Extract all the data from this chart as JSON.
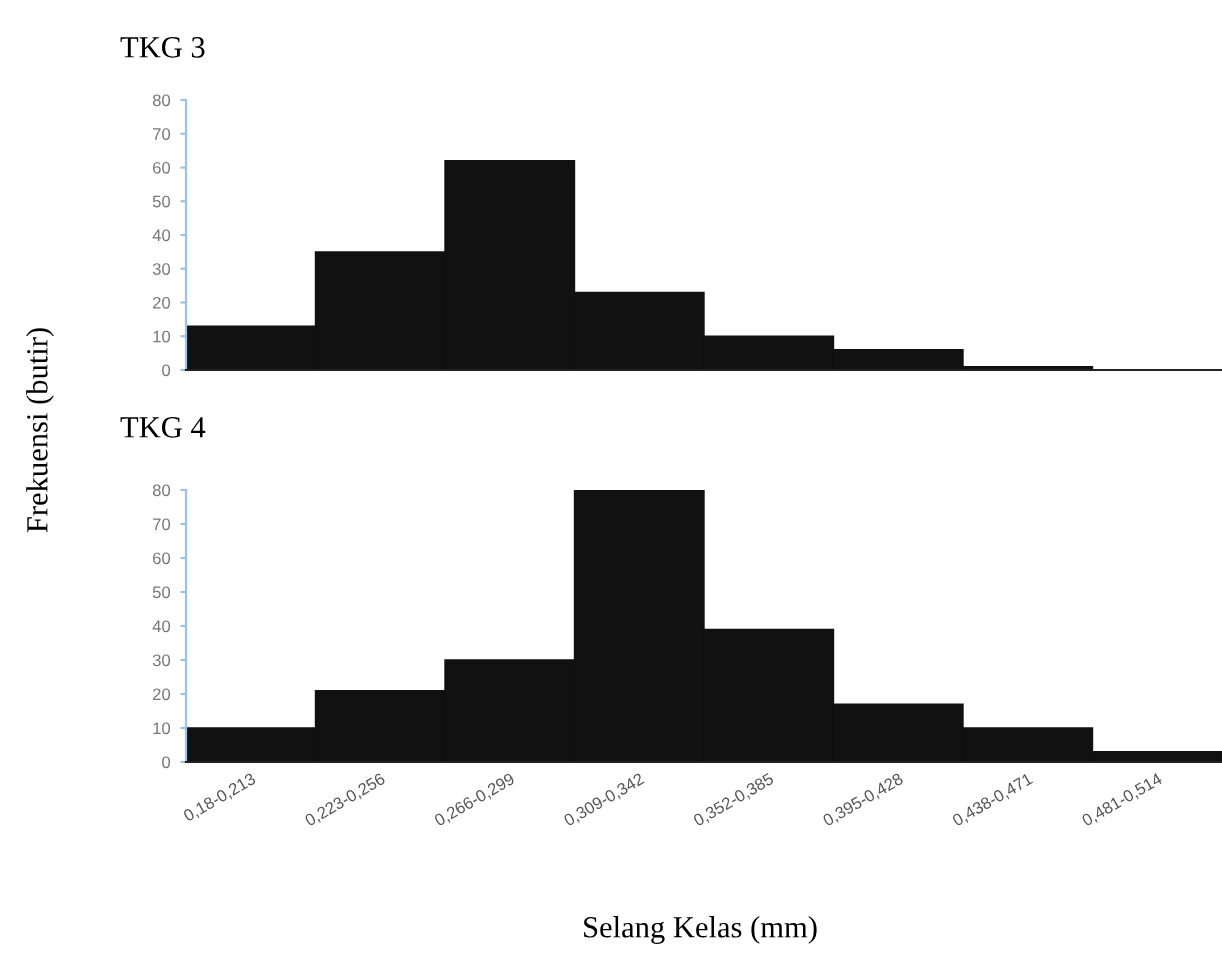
{
  "chart_data": [
    {
      "type": "bar",
      "title": "TKG 3",
      "ylabel": "Frekuensi (butir)",
      "categories": [
        null,
        null,
        null,
        null,
        null,
        null,
        null,
        null
      ],
      "values": [
        13,
        35,
        62,
        23,
        10,
        6,
        1,
        0
      ],
      "color": "#111111",
      "ylim": [
        0,
        80
      ],
      "yticks": [
        0,
        10,
        20,
        30,
        40,
        50,
        60,
        70,
        80
      ],
      "tick_labels": "y",
      "grid": false
    },
    {
      "type": "bar",
      "title": "TKG 4",
      "xlabel": "Selang Kelas (mm)",
      "categories": [
        "0,18-0,213",
        "0,223-0,256",
        "0,266-0,299",
        "0,309-0,342",
        "0,352-0,385",
        "0,395-0,428",
        "0,438-0,471",
        "0,481-0,514"
      ],
      "values": [
        10,
        21,
        30,
        80,
        39,
        17,
        10,
        3
      ],
      "color": "#111111",
      "ylim": [
        0,
        80
      ],
      "yticks": [
        0,
        10,
        20,
        30,
        40,
        50,
        60,
        70,
        80
      ],
      "grid": false
    }
  ]
}
